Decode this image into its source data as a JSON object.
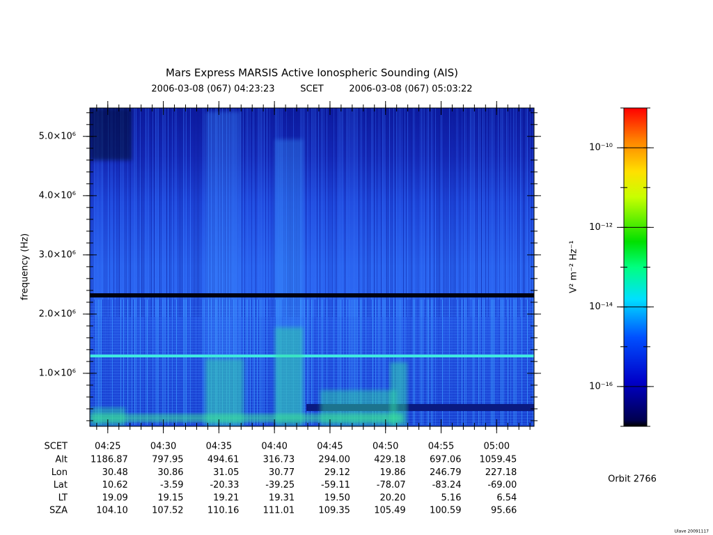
{
  "chart_data": {
    "type": "spectrogram",
    "title": "Mars Express MARSIS Active Ionospheric Sounding (AIS)",
    "time_start": "2006-03-08 (067) 04:23:23",
    "time_ref": "SCET",
    "time_end": "2006-03-08 (067) 05:03:22",
    "ylabel": "frequency (Hz)",
    "xlim": [
      "04:23:23",
      "05:03:22"
    ],
    "xticks": [
      "04:25",
      "04:30",
      "04:35",
      "04:40",
      "04:45",
      "04:50",
      "04:55",
      "05:00"
    ],
    "ylim": [
      105000,
      5480000
    ],
    "yticks": [
      {
        "value": 1000000,
        "label": "1.0×10⁶"
      },
      {
        "value": 2000000,
        "label": "2.0×10⁶"
      },
      {
        "value": 3000000,
        "label": "3.0×10⁶"
      },
      {
        "value": 4000000,
        "label": "4.0×10⁶"
      },
      {
        "value": 5000000,
        "label": "5.0×10⁶"
      }
    ],
    "colorbar": {
      "label": "V² m⁻² Hz⁻¹",
      "log": true,
      "clim": [
        1e-17,
        1e-09
      ],
      "ticks": [
        {
          "value": 1e-10,
          "label": "10⁻¹⁰"
        },
        {
          "value": 1e-12,
          "label": "10⁻¹²"
        },
        {
          "value": 1e-14,
          "label": "10⁻¹⁴"
        },
        {
          "value": 1e-16,
          "label": "10⁻¹⁶"
        }
      ]
    },
    "ephemeris": {
      "time_label": "SCET",
      "rows": [
        {
          "label": "Alt",
          "values": [
            1186.87,
            797.95,
            494.61,
            316.73,
            294.0,
            429.18,
            697.06,
            1059.45
          ]
        },
        {
          "label": "Lon",
          "values": [
            30.48,
            30.86,
            31.05,
            30.77,
            29.12,
            19.86,
            246.79,
            227.18
          ]
        },
        {
          "label": "Lat",
          "values": [
            10.62,
            -3.59,
            -20.33,
            -39.25,
            -59.11,
            -78.07,
            -83.24,
            -69.0
          ]
        },
        {
          "label": "LT",
          "values": [
            19.09,
            19.15,
            19.21,
            19.31,
            19.5,
            20.2,
            5.16,
            6.54
          ]
        },
        {
          "label": "SZA",
          "values": [
            104.1,
            107.52,
            110.16,
            111.01,
            109.35,
            105.49,
            100.59,
            95.66
          ]
        }
      ]
    },
    "orbit": "Orbit 2766",
    "footer": "Ulave 20091117"
  }
}
